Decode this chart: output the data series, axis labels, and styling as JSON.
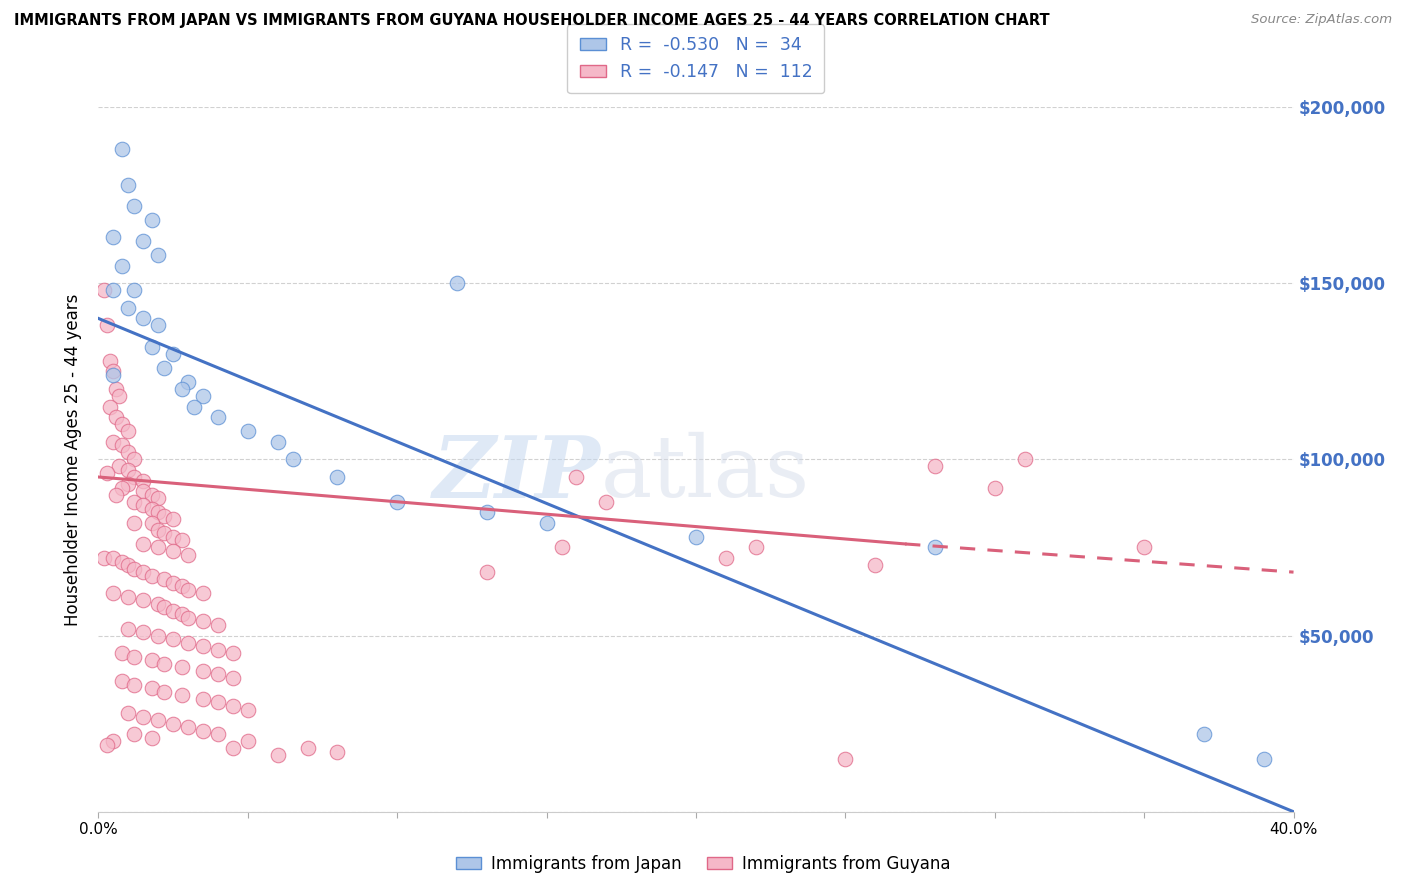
{
  "title": "IMMIGRANTS FROM JAPAN VS IMMIGRANTS FROM GUYANA HOUSEHOLDER INCOME AGES 25 - 44 YEARS CORRELATION CHART",
  "source": "Source: ZipAtlas.com",
  "ylabel": "Householder Income Ages 25 - 44 years",
  "xlim": [
    0.0,
    0.4
  ],
  "ylim": [
    0,
    200000
  ],
  "yticks": [
    0,
    50000,
    100000,
    150000,
    200000
  ],
  "ytick_labels": [
    "",
    "$50,000",
    "$100,000",
    "$150,000",
    "$200,000"
  ],
  "xticks": [
    0.0,
    0.05,
    0.1,
    0.15,
    0.2,
    0.25,
    0.3,
    0.35,
    0.4
  ],
  "xtick_labels": [
    "0.0%",
    "",
    "",
    "",
    "",
    "",
    "",
    "",
    "40.0%"
  ],
  "japan_color": "#aec6e8",
  "guyana_color": "#f5b8c8",
  "japan_edge_color": "#5b8fd4",
  "guyana_edge_color": "#e06888",
  "japan_line_color": "#4472c4",
  "guyana_line_color": "#d9607a",
  "japan_R": -0.53,
  "japan_N": 34,
  "guyana_R": -0.147,
  "guyana_N": 112,
  "legend_japan": "Immigrants from Japan",
  "legend_guyana": "Immigrants from Guyana",
  "watermark_zip": "ZIP",
  "watermark_atlas": "atlas",
  "background_color": "#ffffff",
  "japan_line_x0": 0.0,
  "japan_line_y0": 140000,
  "japan_line_x1": 0.4,
  "japan_line_y1": 0,
  "guyana_line_solid_x0": 0.0,
  "guyana_line_solid_y0": 95000,
  "guyana_line_solid_x1": 0.27,
  "guyana_line_solid_y1": 76000,
  "guyana_line_dash_x0": 0.27,
  "guyana_line_dash_y0": 76000,
  "guyana_line_dash_x1": 0.4,
  "guyana_line_dash_y1": 68000,
  "japan_scatter": [
    [
      0.008,
      188000
    ],
    [
      0.01,
      178000
    ],
    [
      0.012,
      172000
    ],
    [
      0.018,
      168000
    ],
    [
      0.005,
      163000
    ],
    [
      0.015,
      162000
    ],
    [
      0.02,
      158000
    ],
    [
      0.008,
      155000
    ],
    [
      0.005,
      148000
    ],
    [
      0.012,
      148000
    ],
    [
      0.01,
      143000
    ],
    [
      0.015,
      140000
    ],
    [
      0.02,
      138000
    ],
    [
      0.018,
      132000
    ],
    [
      0.025,
      130000
    ],
    [
      0.022,
      126000
    ],
    [
      0.005,
      124000
    ],
    [
      0.03,
      122000
    ],
    [
      0.028,
      120000
    ],
    [
      0.035,
      118000
    ],
    [
      0.032,
      115000
    ],
    [
      0.04,
      112000
    ],
    [
      0.05,
      108000
    ],
    [
      0.06,
      105000
    ],
    [
      0.065,
      100000
    ],
    [
      0.12,
      150000
    ],
    [
      0.08,
      95000
    ],
    [
      0.1,
      88000
    ],
    [
      0.13,
      85000
    ],
    [
      0.15,
      82000
    ],
    [
      0.2,
      78000
    ],
    [
      0.28,
      75000
    ],
    [
      0.37,
      22000
    ],
    [
      0.39,
      15000
    ]
  ],
  "guyana_scatter": [
    [
      0.002,
      148000
    ],
    [
      0.003,
      138000
    ],
    [
      0.004,
      128000
    ],
    [
      0.005,
      125000
    ],
    [
      0.006,
      120000
    ],
    [
      0.007,
      118000
    ],
    [
      0.004,
      115000
    ],
    [
      0.006,
      112000
    ],
    [
      0.008,
      110000
    ],
    [
      0.01,
      108000
    ],
    [
      0.005,
      105000
    ],
    [
      0.008,
      104000
    ],
    [
      0.01,
      102000
    ],
    [
      0.012,
      100000
    ],
    [
      0.007,
      98000
    ],
    [
      0.01,
      97000
    ],
    [
      0.003,
      96000
    ],
    [
      0.012,
      95000
    ],
    [
      0.015,
      94000
    ],
    [
      0.01,
      93000
    ],
    [
      0.008,
      92000
    ],
    [
      0.015,
      91000
    ],
    [
      0.018,
      90000
    ],
    [
      0.006,
      90000
    ],
    [
      0.02,
      89000
    ],
    [
      0.012,
      88000
    ],
    [
      0.015,
      87000
    ],
    [
      0.018,
      86000
    ],
    [
      0.02,
      85000
    ],
    [
      0.022,
      84000
    ],
    [
      0.025,
      83000
    ],
    [
      0.018,
      82000
    ],
    [
      0.012,
      82000
    ],
    [
      0.02,
      80000
    ],
    [
      0.022,
      79000
    ],
    [
      0.025,
      78000
    ],
    [
      0.028,
      77000
    ],
    [
      0.015,
      76000
    ],
    [
      0.02,
      75000
    ],
    [
      0.025,
      74000
    ],
    [
      0.03,
      73000
    ],
    [
      0.002,
      72000
    ],
    [
      0.005,
      72000
    ],
    [
      0.008,
      71000
    ],
    [
      0.01,
      70000
    ],
    [
      0.012,
      69000
    ],
    [
      0.015,
      68000
    ],
    [
      0.018,
      67000
    ],
    [
      0.022,
      66000
    ],
    [
      0.025,
      65000
    ],
    [
      0.028,
      64000
    ],
    [
      0.03,
      63000
    ],
    [
      0.035,
      62000
    ],
    [
      0.005,
      62000
    ],
    [
      0.01,
      61000
    ],
    [
      0.015,
      60000
    ],
    [
      0.02,
      59000
    ],
    [
      0.022,
      58000
    ],
    [
      0.025,
      57000
    ],
    [
      0.028,
      56000
    ],
    [
      0.03,
      55000
    ],
    [
      0.035,
      54000
    ],
    [
      0.04,
      53000
    ],
    [
      0.01,
      52000
    ],
    [
      0.015,
      51000
    ],
    [
      0.02,
      50000
    ],
    [
      0.025,
      49000
    ],
    [
      0.03,
      48000
    ],
    [
      0.035,
      47000
    ],
    [
      0.04,
      46000
    ],
    [
      0.045,
      45000
    ],
    [
      0.008,
      45000
    ],
    [
      0.012,
      44000
    ],
    [
      0.018,
      43000
    ],
    [
      0.022,
      42000
    ],
    [
      0.028,
      41000
    ],
    [
      0.035,
      40000
    ],
    [
      0.04,
      39000
    ],
    [
      0.045,
      38000
    ],
    [
      0.008,
      37000
    ],
    [
      0.012,
      36000
    ],
    [
      0.018,
      35000
    ],
    [
      0.022,
      34000
    ],
    [
      0.028,
      33000
    ],
    [
      0.035,
      32000
    ],
    [
      0.04,
      31000
    ],
    [
      0.045,
      30000
    ],
    [
      0.05,
      29000
    ],
    [
      0.01,
      28000
    ],
    [
      0.015,
      27000
    ],
    [
      0.02,
      26000
    ],
    [
      0.025,
      25000
    ],
    [
      0.03,
      24000
    ],
    [
      0.035,
      23000
    ],
    [
      0.04,
      22000
    ],
    [
      0.012,
      22000
    ],
    [
      0.018,
      21000
    ],
    [
      0.005,
      20000
    ],
    [
      0.05,
      20000
    ],
    [
      0.003,
      19000
    ],
    [
      0.045,
      18000
    ],
    [
      0.07,
      18000
    ],
    [
      0.08,
      17000
    ],
    [
      0.06,
      16000
    ],
    [
      0.31,
      100000
    ],
    [
      0.3,
      92000
    ],
    [
      0.35,
      75000
    ],
    [
      0.28,
      98000
    ],
    [
      0.16,
      95000
    ],
    [
      0.17,
      88000
    ],
    [
      0.22,
      75000
    ],
    [
      0.155,
      75000
    ],
    [
      0.21,
      72000
    ],
    [
      0.26,
      70000
    ],
    [
      0.13,
      68000
    ],
    [
      0.25,
      15000
    ]
  ]
}
